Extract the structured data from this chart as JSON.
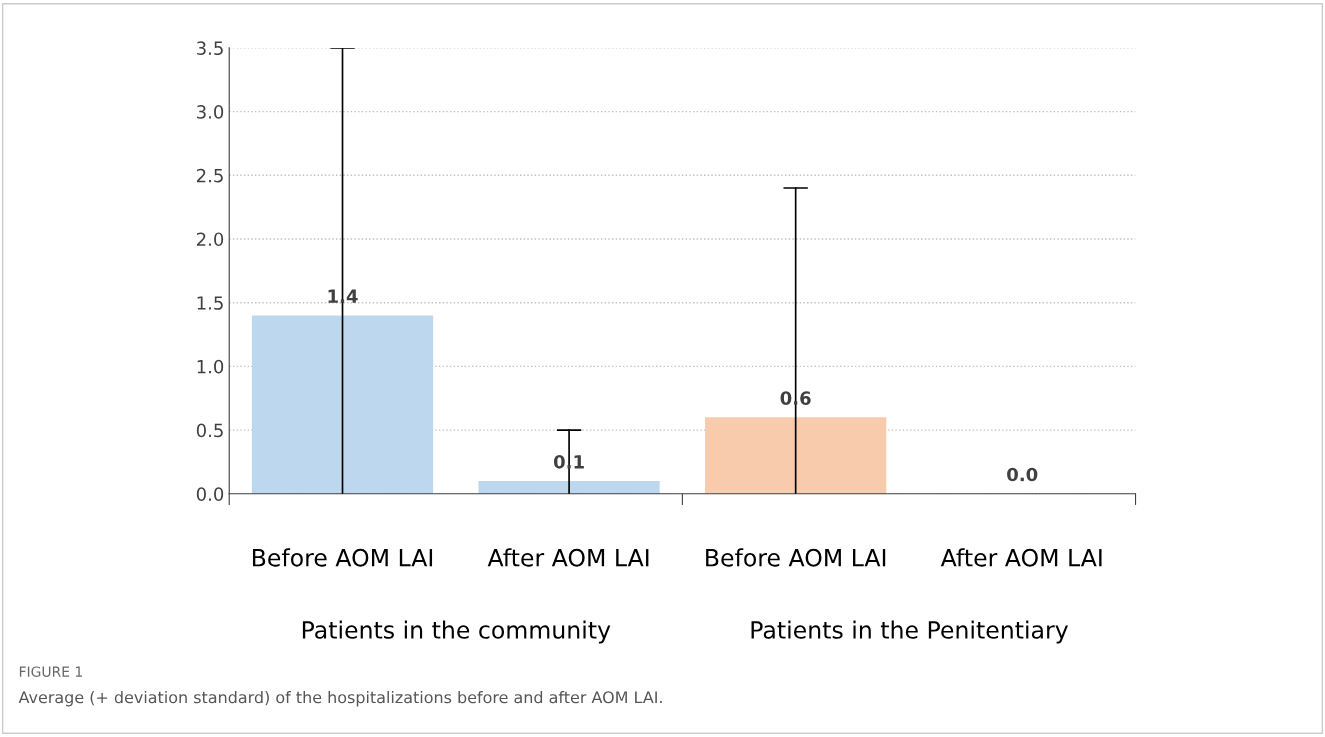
{
  "chart_data": {
    "type": "bar",
    "categories": [
      "Before AOM LAI",
      "After AOM LAI",
      "Before AOM LAI",
      "After AOM LAI"
    ],
    "values": [
      1.4,
      0.1,
      0.6,
      0.0
    ],
    "colors": [
      "#bdd7ee",
      "#bdd7ee",
      "#f8cbad",
      "#f8cbad"
    ],
    "errors": [
      [
        0,
        3.5
      ],
      [
        0,
        0.5
      ],
      [
        0,
        2.4
      ],
      null
    ],
    "value_labels": [
      "1.4",
      "0.1",
      "0.6",
      "0.0"
    ],
    "ylim": [
      0,
      3.5
    ],
    "yticks": [
      {
        "value": 0,
        "label": "0.0"
      },
      {
        "value": 0.5,
        "label": "0.5"
      },
      {
        "value": 1,
        "label": "1.0"
      },
      {
        "value": 1.5,
        "label": "1.5"
      },
      {
        "value": 2,
        "label": "2.0"
      },
      {
        "value": 2.5,
        "label": "2.5"
      },
      {
        "value": 3,
        "label": "3.0"
      },
      {
        "value": 3.5,
        "label": "3.5"
      }
    ],
    "grid": "y",
    "annotations": [
      "Patients in the community",
      "Patients in the Penitentiary",
      "FIGURE 1",
      "Average (+ deviation standard) of the hospitalizations before and after AOM LAI."
    ]
  }
}
